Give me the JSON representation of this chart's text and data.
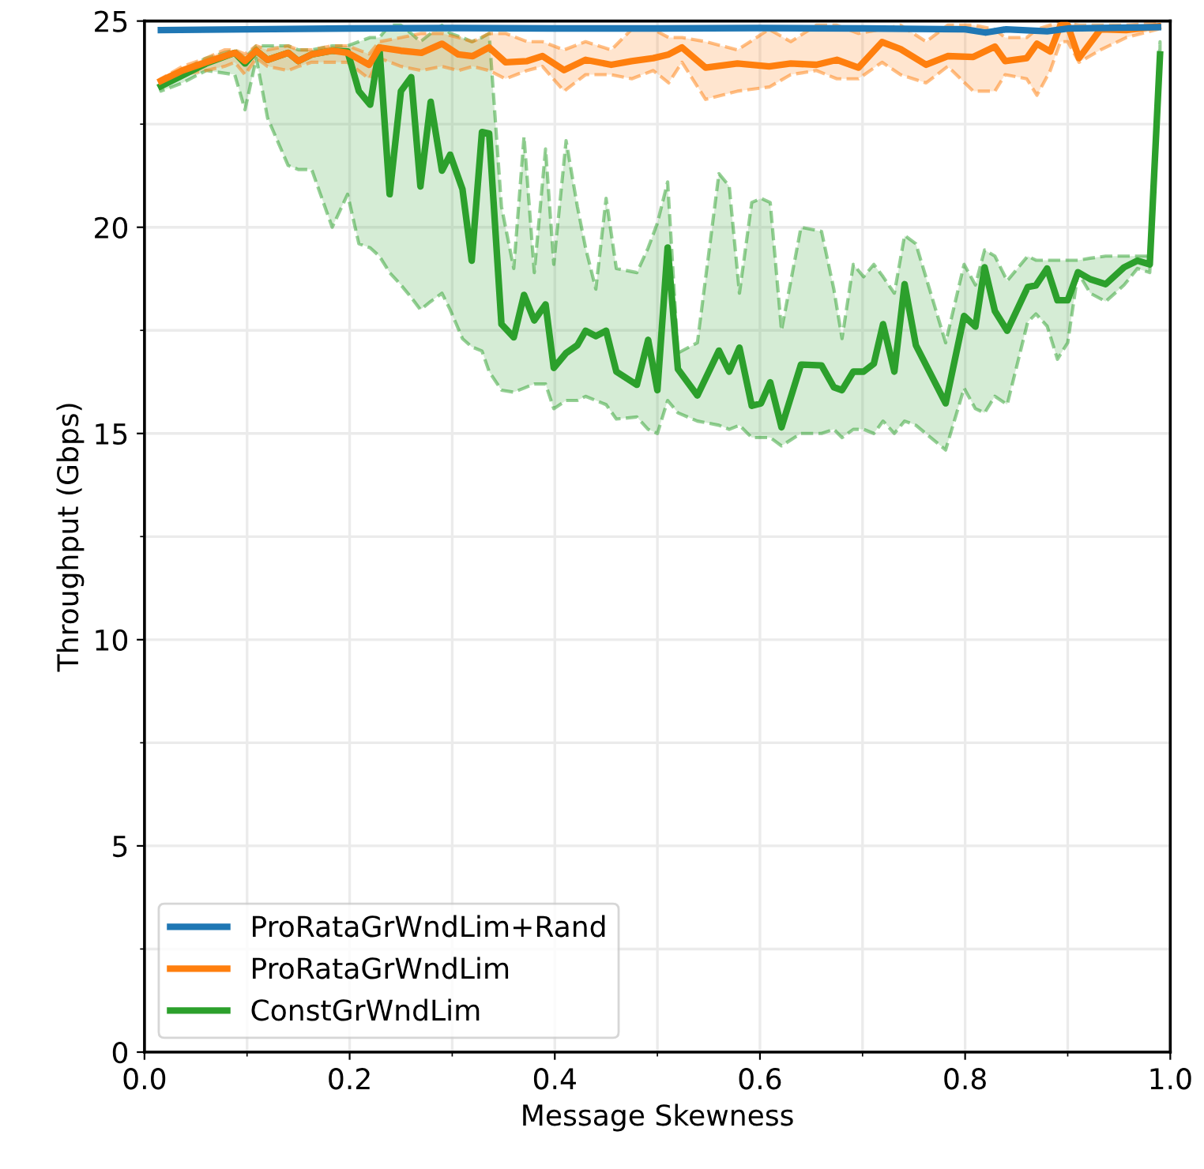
{
  "chart_data": {
    "type": "line",
    "xlabel": "Message Skewness",
    "ylabel": "Throughput (Gbps)",
    "xlim": [
      0,
      1
    ],
    "ylim": [
      0,
      25
    ],
    "xticks": [
      {
        "value": 0,
        "label": "0.0"
      },
      {
        "value": 0.1,
        "label": null
      },
      0.2,
      {
        "value": 0.3,
        "label": null
      },
      0.4,
      {
        "value": 0.5,
        "label": null
      },
      0.6,
      {
        "value": 0.7,
        "label": null
      },
      0.8,
      {
        "value": 0.9,
        "label": null
      },
      {
        "value": 1,
        "label": "1.0"
      }
    ],
    "yticks": [
      0,
      {
        "value": 2.5,
        "label": null
      },
      5,
      {
        "value": 7.5,
        "label": null
      },
      10,
      {
        "value": 12.5,
        "label": null
      },
      15,
      {
        "value": 17.5,
        "label": null
      },
      20,
      {
        "value": 22.5,
        "label": null
      },
      25
    ],
    "grid": true,
    "legend": "bottom left",
    "line_style": "solid",
    "marker": "none",
    "series": [
      {
        "name": "ProRataGrWndLim+Rand",
        "color": "#1f77b4",
        "x": [
          0.016,
          0.1,
          0.2,
          0.3,
          0.4,
          0.5,
          0.6,
          0.7,
          0.8,
          0.82,
          0.84,
          0.88,
          0.9,
          0.988
        ],
        "values": [
          24.78,
          24.8,
          24.82,
          24.83,
          24.82,
          24.82,
          24.83,
          24.82,
          24.8,
          24.72,
          24.8,
          24.75,
          24.82,
          24.85
        ]
      },
      {
        "name": "ProRataGrWndLim",
        "color": "#ff7f0e",
        "x": [
          0.016,
          0.037,
          0.06,
          0.078,
          0.088,
          0.098,
          0.109,
          0.12,
          0.14,
          0.15,
          0.163,
          0.183,
          0.198,
          0.219,
          0.229,
          0.25,
          0.27,
          0.29,
          0.306,
          0.32,
          0.336,
          0.352,
          0.373,
          0.388,
          0.409,
          0.43,
          0.455,
          0.475,
          0.496,
          0.511,
          0.524,
          0.547,
          0.578,
          0.609,
          0.63,
          0.655,
          0.675,
          0.696,
          0.719,
          0.737,
          0.762,
          0.783,
          0.808,
          0.829,
          0.839,
          0.86,
          0.87,
          0.883,
          0.893,
          0.9,
          0.911,
          0.932,
          0.957,
          0.988
        ],
        "values": [
          23.55,
          23.8,
          24.0,
          24.15,
          24.23,
          24.03,
          24.28,
          24.06,
          24.23,
          24.03,
          24.19,
          24.28,
          24.23,
          23.94,
          24.36,
          24.28,
          24.23,
          24.45,
          24.19,
          24.15,
          24.36,
          24.0,
          24.03,
          24.15,
          23.81,
          24.06,
          23.94,
          24.03,
          24.1,
          24.19,
          24.36,
          23.87,
          23.97,
          23.9,
          23.97,
          23.94,
          24.06,
          23.87,
          24.49,
          24.32,
          23.94,
          24.15,
          24.13,
          24.38,
          24.03,
          24.1,
          24.45,
          24.26,
          24.9,
          24.9,
          24.1,
          24.8,
          24.78,
          24.87
        ],
        "lower": [
          23.45,
          23.7,
          23.8,
          23.9,
          24.0,
          23.7,
          24.1,
          23.9,
          23.8,
          23.9,
          24.0,
          24.0,
          24.0,
          23.6,
          24.1,
          23.9,
          23.8,
          23.9,
          23.8,
          23.9,
          23.8,
          23.6,
          23.8,
          23.9,
          23.3,
          23.7,
          23.7,
          23.6,
          23.8,
          23.5,
          24.0,
          23.1,
          23.3,
          23.4,
          23.7,
          23.8,
          23.6,
          23.6,
          24.0,
          23.7,
          23.5,
          23.9,
          23.3,
          23.3,
          23.7,
          23.6,
          23.2,
          23.8,
          24.5,
          24.5,
          24.0,
          24.3,
          24.6,
          24.8
        ],
        "upper": [
          23.6,
          23.9,
          24.1,
          24.3,
          24.3,
          24.2,
          24.4,
          24.3,
          24.4,
          24.3,
          24.3,
          24.4,
          24.4,
          24.2,
          24.5,
          24.6,
          24.7,
          24.7,
          24.6,
          24.5,
          24.7,
          24.7,
          24.5,
          24.5,
          24.3,
          24.5,
          24.3,
          24.8,
          24.8,
          24.6,
          24.6,
          24.5,
          24.3,
          24.8,
          24.5,
          24.9,
          24.9,
          24.7,
          24.8,
          24.9,
          24.5,
          24.9,
          24.9,
          24.8,
          24.6,
          24.6,
          24.8,
          24.9,
          24.95,
          24.95,
          24.9,
          24.9,
          24.9,
          24.95
        ]
      },
      {
        "name": "ConstGrWndLim",
        "color": "#2ca02c",
        "x": [
          0.016,
          0.037,
          0.06,
          0.088,
          0.098,
          0.109,
          0.12,
          0.14,
          0.15,
          0.163,
          0.183,
          0.198,
          0.209,
          0.22,
          0.229,
          0.239,
          0.25,
          0.26,
          0.269,
          0.279,
          0.29,
          0.298,
          0.31,
          0.319,
          0.329,
          0.336,
          0.348,
          0.36,
          0.37,
          0.38,
          0.391,
          0.399,
          0.411,
          0.422,
          0.43,
          0.44,
          0.45,
          0.46,
          0.48,
          0.491,
          0.5,
          0.51,
          0.52,
          0.539,
          0.56,
          0.57,
          0.58,
          0.592,
          0.601,
          0.61,
          0.621,
          0.64,
          0.66,
          0.672,
          0.68,
          0.691,
          0.701,
          0.711,
          0.72,
          0.731,
          0.741,
          0.752,
          0.781,
          0.799,
          0.81,
          0.819,
          0.829,
          0.841,
          0.861,
          0.869,
          0.88,
          0.89,
          0.9,
          0.91,
          0.922,
          0.937,
          0.955,
          0.968,
          0.98,
          0.99
        ],
        "values": [
          23.42,
          23.68,
          23.97,
          24.23,
          23.97,
          24.28,
          24.06,
          24.23,
          24.03,
          24.19,
          24.28,
          24.26,
          23.3,
          22.97,
          24.36,
          20.8,
          23.3,
          23.64,
          20.99,
          23.04,
          21.37,
          21.76,
          20.92,
          19.19,
          22.31,
          22.27,
          17.65,
          17.33,
          18.36,
          17.74,
          18.13,
          16.59,
          16.95,
          17.14,
          17.49,
          17.36,
          17.49,
          16.5,
          16.18,
          17.27,
          16.05,
          19.51,
          16.56,
          15.92,
          17.01,
          16.5,
          17.08,
          15.67,
          15.73,
          16.24,
          15.15,
          16.67,
          16.65,
          16.12,
          16.05,
          16.5,
          16.5,
          16.69,
          17.65,
          16.5,
          18.62,
          17.14,
          15.73,
          17.85,
          17.59,
          19.03,
          17.97,
          17.49,
          18.55,
          18.59,
          19.0,
          18.23,
          18.23,
          18.91,
          18.74,
          18.62,
          19.03,
          19.19,
          19.1,
          24.19
        ],
        "lower": [
          23.3,
          23.5,
          23.8,
          23.7,
          22.85,
          24.1,
          22.65,
          21.5,
          21.4,
          21.4,
          20.0,
          20.8,
          19.6,
          19.5,
          19.3,
          18.9,
          18.6,
          18.3,
          18.0,
          18.2,
          18.4,
          18.0,
          17.3,
          17.1,
          17.0,
          16.5,
          16.05,
          16.0,
          16.1,
          16.2,
          16.2,
          15.6,
          15.8,
          15.8,
          15.9,
          15.8,
          15.7,
          15.35,
          15.4,
          15.1,
          15.0,
          15.8,
          15.5,
          15.3,
          15.2,
          15.1,
          15.2,
          14.9,
          14.9,
          14.9,
          14.7,
          15.0,
          15.0,
          15.1,
          14.9,
          15.1,
          15.1,
          15.0,
          15.3,
          15.0,
          15.3,
          15.2,
          14.6,
          16.1,
          15.6,
          15.5,
          15.9,
          15.7,
          17.7,
          17.9,
          17.6,
          16.8,
          17.2,
          18.9,
          18.4,
          18.2,
          18.6,
          19.0,
          18.9,
          24.0
        ],
        "upper": [
          23.5,
          23.8,
          24.1,
          24.3,
          24.1,
          24.4,
          24.4,
          24.4,
          24.3,
          24.3,
          24.4,
          24.4,
          24.5,
          24.6,
          24.6,
          24.9,
          24.9,
          24.7,
          24.5,
          24.7,
          24.9,
          24.7,
          24.6,
          24.5,
          24.6,
          24.7,
          20.5,
          19.0,
          22.2,
          18.9,
          21.9,
          19.1,
          22.1,
          20.5,
          19.5,
          18.5,
          20.7,
          19.0,
          18.9,
          19.5,
          20.1,
          21.1,
          16.95,
          17.2,
          21.3,
          21.0,
          18.4,
          20.6,
          20.7,
          20.6,
          17.5,
          20.0,
          19.9,
          18.5,
          17.3,
          19.1,
          18.8,
          19.1,
          18.8,
          18.4,
          19.8,
          19.6,
          17.2,
          19.1,
          18.6,
          19.45,
          19.3,
          18.7,
          19.3,
          19.2,
          19.2,
          19.2,
          19.2,
          19.2,
          19.25,
          19.3,
          19.3,
          19.3,
          19.3,
          24.5
        ]
      }
    ]
  }
}
